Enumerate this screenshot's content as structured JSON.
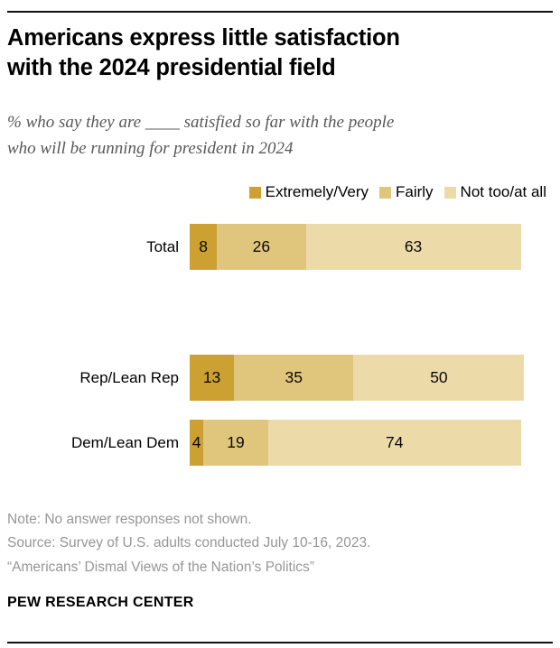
{
  "header": {
    "title_lines": [
      "Americans express little satisfaction",
      "with the 2024 presidential field"
    ],
    "subtitle_lines": [
      "% who say they are ____ satisfied so far with the people",
      "who will be running for president in 2024"
    ]
  },
  "legend": {
    "items": [
      {
        "label": "Extremely/Very",
        "color": "#cca132"
      },
      {
        "label": "Fairly",
        "color": "#e0c57d"
      },
      {
        "label": "Not too/at all",
        "color": "#ecdba8"
      }
    ]
  },
  "chart_data": {
    "type": "bar",
    "orientation": "horizontal-stacked",
    "categories": [
      "Total",
      "Rep/Lean Rep",
      "Dem/Lean Dem"
    ],
    "series": [
      {
        "name": "Extremely/Very",
        "color": "#cca132",
        "values": [
          8,
          13,
          4
        ]
      },
      {
        "name": "Fairly",
        "color": "#e0c57d",
        "values": [
          26,
          35,
          19
        ]
      },
      {
        "name": "Not too/at all",
        "color": "#ecdba8",
        "values": [
          63,
          50,
          74
        ]
      }
    ],
    "title": "Americans express little satisfaction with the 2024 presidential field",
    "subtitle": "% who say they are ____ satisfied so far with the people who will be running for president in 2024",
    "xlim": [
      0,
      100
    ],
    "legend_position": "top-right",
    "value_labels": "inside",
    "grid": false
  },
  "notes": {
    "lines": [
      "Note: No answer responses not shown.",
      "Source: Survey of U.S. adults conducted July 10-16, 2023.",
      "“Americans’ Dismal Views of the Nation’s Politics”"
    ]
  },
  "footer": {
    "brand": "PEW RESEARCH CENTER"
  }
}
